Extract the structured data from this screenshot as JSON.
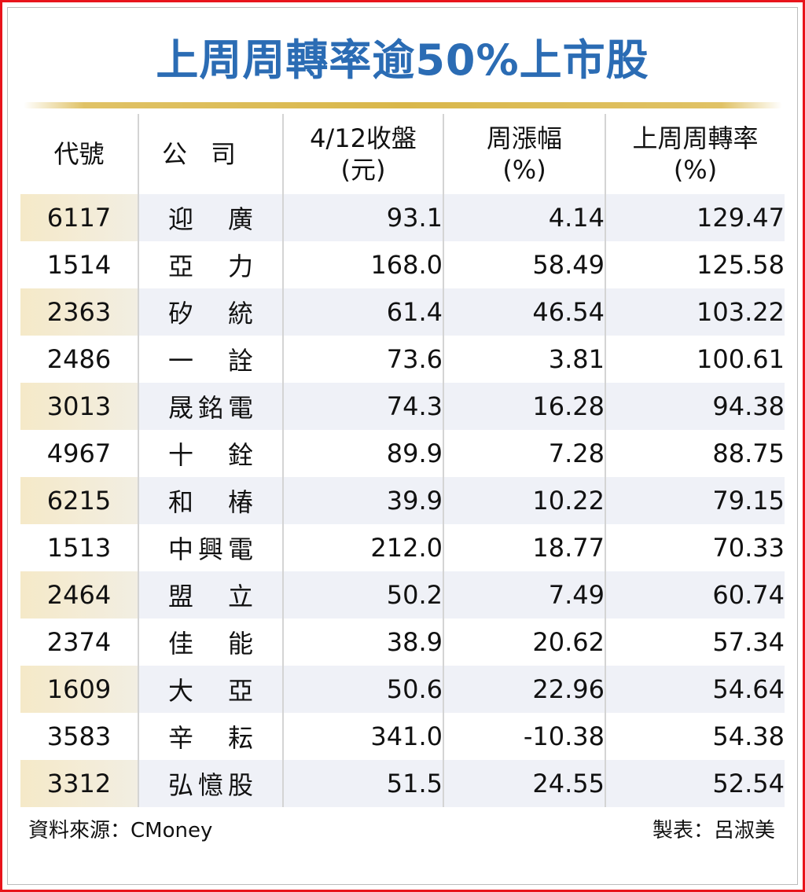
{
  "title": "上周周轉率逾50%上市股",
  "header": {
    "code": "代號",
    "company": "公司",
    "close_line1": "4/12收盤",
    "close_line2": "(元)",
    "change_line1": "周漲幅",
    "change_line2": "(%)",
    "turnover_line1": "上周周轉率",
    "turnover_line2": "(%)"
  },
  "chart_data": {
    "type": "table",
    "title": "上周周轉率逾50%上市股",
    "columns": [
      "代號",
      "公司",
      "4/12收盤 (元)",
      "周漲幅 (%)",
      "上周周轉率 (%)"
    ],
    "rows": [
      {
        "code": "6117",
        "company": "迎廣",
        "close": "93.1",
        "change": "4.14",
        "turnover": "129.47"
      },
      {
        "code": "1514",
        "company": "亞力",
        "close": "168.0",
        "change": "58.49",
        "turnover": "125.58"
      },
      {
        "code": "2363",
        "company": "矽統",
        "close": "61.4",
        "change": "46.54",
        "turnover": "103.22"
      },
      {
        "code": "2486",
        "company": "一詮",
        "close": "73.6",
        "change": "3.81",
        "turnover": "100.61"
      },
      {
        "code": "3013",
        "company": "晟銘電",
        "close": "74.3",
        "change": "16.28",
        "turnover": "94.38"
      },
      {
        "code": "4967",
        "company": "十銓",
        "close": "89.9",
        "change": "7.28",
        "turnover": "88.75"
      },
      {
        "code": "6215",
        "company": "和椿",
        "close": "39.9",
        "change": "10.22",
        "turnover": "79.15"
      },
      {
        "code": "1513",
        "company": "中興電",
        "close": "212.0",
        "change": "18.77",
        "turnover": "70.33"
      },
      {
        "code": "2464",
        "company": "盟立",
        "close": "50.2",
        "change": "7.49",
        "turnover": "60.74"
      },
      {
        "code": "2374",
        "company": "佳能",
        "close": "38.9",
        "change": "20.62",
        "turnover": "57.34"
      },
      {
        "code": "1609",
        "company": "大亞",
        "close": "50.6",
        "change": "22.96",
        "turnover": "54.64"
      },
      {
        "code": "3583",
        "company": "辛耘",
        "close": "341.0",
        "change": "-10.38",
        "turnover": "54.38"
      },
      {
        "code": "3312",
        "company": "弘憶股",
        "close": "51.5",
        "change": "24.55",
        "turnover": "52.54"
      }
    ]
  },
  "footer": {
    "source": "資料來源：CMoney",
    "maker": "製表：呂淑美"
  },
  "colors": {
    "title": "#2b6cb4",
    "frame": "#e8141b",
    "stripe": "#eff1f7",
    "code_stripe": "#f5e9c8",
    "rule": "#d9b74a"
  }
}
